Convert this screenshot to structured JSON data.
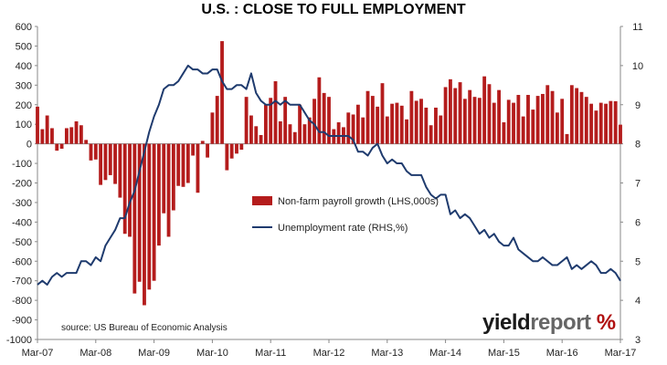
{
  "title": "U.S. : CLOSE TO FULL EMPLOYMENT",
  "source_note": "source: US Bureau of Economic Analysis",
  "brand": {
    "part1": "yield",
    "part2": "report",
    "symbol": "%"
  },
  "colors": {
    "bars": "#b41c1c",
    "line": "#1f3b6e",
    "grid": "#d9d9d9",
    "brand_accent": "#b01010"
  },
  "chart_data": {
    "type": "bar",
    "x_tick_labels": [
      "Mar-07",
      "Mar-08",
      "Mar-09",
      "Mar-10",
      "Mar-11",
      "Mar-12",
      "Mar-13",
      "Mar-14",
      "Mar-15",
      "Mar-16",
      "Mar-17"
    ],
    "left_axis": {
      "ticks": [
        -1000,
        -900,
        -800,
        -700,
        -600,
        -500,
        -400,
        -300,
        -200,
        -100,
        0,
        100,
        200,
        300,
        400,
        500,
        600
      ],
      "range": [
        -1000,
        600
      ]
    },
    "right_axis": {
      "ticks": [
        3,
        4,
        5,
        6,
        7,
        8,
        9,
        10,
        11
      ],
      "range": [
        3,
        11
      ]
    },
    "legend_placement": "center",
    "grid": false,
    "series": [
      {
        "name": "Non-farm payroll growth (LHS,000s)",
        "type": "bar",
        "axis": "left",
        "x": [
          "2007-03",
          "2007-04",
          "2007-05",
          "2007-06",
          "2007-07",
          "2007-08",
          "2007-09",
          "2007-10",
          "2007-11",
          "2007-12",
          "2008-01",
          "2008-02",
          "2008-03",
          "2008-04",
          "2008-05",
          "2008-06",
          "2008-07",
          "2008-08",
          "2008-09",
          "2008-10",
          "2008-11",
          "2008-12",
          "2009-01",
          "2009-02",
          "2009-03",
          "2009-04",
          "2009-05",
          "2009-06",
          "2009-07",
          "2009-08",
          "2009-09",
          "2009-10",
          "2009-11",
          "2009-12",
          "2010-01",
          "2010-02",
          "2010-03",
          "2010-04",
          "2010-05",
          "2010-06",
          "2010-07",
          "2010-08",
          "2010-09",
          "2010-10",
          "2010-11",
          "2010-12",
          "2011-01",
          "2011-02",
          "2011-03",
          "2011-04",
          "2011-05",
          "2011-06",
          "2011-07",
          "2011-08",
          "2011-09",
          "2011-10",
          "2011-11",
          "2011-12",
          "2012-01",
          "2012-02",
          "2012-03",
          "2012-04",
          "2012-05",
          "2012-06",
          "2012-07",
          "2012-08",
          "2012-09",
          "2012-10",
          "2012-11",
          "2012-12",
          "2013-01",
          "2013-02",
          "2013-03",
          "2013-04",
          "2013-05",
          "2013-06",
          "2013-07",
          "2013-08",
          "2013-09",
          "2013-10",
          "2013-11",
          "2013-12",
          "2014-01",
          "2014-02",
          "2014-03",
          "2014-04",
          "2014-05",
          "2014-06",
          "2014-07",
          "2014-08",
          "2014-09",
          "2014-10",
          "2014-11",
          "2014-12",
          "2015-01",
          "2015-02",
          "2015-03",
          "2015-04",
          "2015-05",
          "2015-06",
          "2015-07",
          "2015-08",
          "2015-09",
          "2015-10",
          "2015-11",
          "2015-12",
          "2016-01",
          "2016-02",
          "2016-03",
          "2016-04",
          "2016-05",
          "2016-06",
          "2016-07",
          "2016-08",
          "2016-09",
          "2016-10",
          "2016-11",
          "2016-12",
          "2017-01",
          "2017-02",
          "2017-03"
        ],
        "values": [
          190,
          75,
          145,
          80,
          -35,
          -25,
          80,
          85,
          115,
          95,
          20,
          -85,
          -80,
          -210,
          -185,
          -160,
          -205,
          -275,
          -460,
          -475,
          -765,
          -705,
          -825,
          -745,
          -700,
          -520,
          -355,
          -475,
          -340,
          -215,
          -220,
          -200,
          -60,
          -250,
          15,
          -70,
          160,
          245,
          525,
          -135,
          -75,
          -50,
          -30,
          240,
          145,
          90,
          45,
          200,
          235,
          320,
          115,
          240,
          100,
          60,
          200,
          100,
          135,
          230,
          340,
          260,
          240,
          75,
          110,
          85,
          160,
          150,
          200,
          135,
          270,
          245,
          190,
          310,
          140,
          205,
          210,
          195,
          125,
          270,
          220,
          230,
          185,
          95,
          185,
          145,
          290,
          330,
          285,
          315,
          230,
          275,
          240,
          235,
          345,
          305,
          210,
          275,
          110,
          225,
          210,
          250,
          140,
          250,
          175,
          245,
          255,
          300,
          270,
          160,
          230,
          50,
          300,
          285,
          265,
          240,
          205,
          170,
          210,
          205,
          219,
          218,
          98
        ],
        "unit": "thousands"
      },
      {
        "name": "Unemployment rate (RHS,%)",
        "type": "line",
        "axis": "right",
        "x": [
          "2007-03",
          "2007-04",
          "2007-05",
          "2007-06",
          "2007-07",
          "2007-08",
          "2007-09",
          "2007-10",
          "2007-11",
          "2007-12",
          "2008-01",
          "2008-02",
          "2008-03",
          "2008-04",
          "2008-05",
          "2008-06",
          "2008-07",
          "2008-08",
          "2008-09",
          "2008-10",
          "2008-11",
          "2008-12",
          "2009-01",
          "2009-02",
          "2009-03",
          "2009-04",
          "2009-05",
          "2009-06",
          "2009-07",
          "2009-08",
          "2009-09",
          "2009-10",
          "2009-11",
          "2009-12",
          "2010-01",
          "2010-02",
          "2010-03",
          "2010-04",
          "2010-05",
          "2010-06",
          "2010-07",
          "2010-08",
          "2010-09",
          "2010-10",
          "2010-11",
          "2010-12",
          "2011-01",
          "2011-02",
          "2011-03",
          "2011-04",
          "2011-05",
          "2011-06",
          "2011-07",
          "2011-08",
          "2011-09",
          "2011-10",
          "2011-11",
          "2011-12",
          "2012-01",
          "2012-02",
          "2012-03",
          "2012-04",
          "2012-05",
          "2012-06",
          "2012-07",
          "2012-08",
          "2012-09",
          "2012-10",
          "2012-11",
          "2012-12",
          "2013-01",
          "2013-02",
          "2013-03",
          "2013-04",
          "2013-05",
          "2013-06",
          "2013-07",
          "2013-08",
          "2013-09",
          "2013-10",
          "2013-11",
          "2013-12",
          "2014-01",
          "2014-02",
          "2014-03",
          "2014-04",
          "2014-05",
          "2014-06",
          "2014-07",
          "2014-08",
          "2014-09",
          "2014-10",
          "2014-11",
          "2014-12",
          "2015-01",
          "2015-02",
          "2015-03",
          "2015-04",
          "2015-05",
          "2015-06",
          "2015-07",
          "2015-08",
          "2015-09",
          "2015-10",
          "2015-11",
          "2015-12",
          "2016-01",
          "2016-02",
          "2016-03",
          "2016-04",
          "2016-05",
          "2016-06",
          "2016-07",
          "2016-08",
          "2016-09",
          "2016-10",
          "2016-11",
          "2016-12",
          "2017-01",
          "2017-02",
          "2017-03"
        ],
        "values": [
          4.4,
          4.5,
          4.4,
          4.6,
          4.7,
          4.6,
          4.7,
          4.7,
          4.7,
          5.0,
          5.0,
          4.9,
          5.1,
          5.0,
          5.4,
          5.6,
          5.8,
          6.1,
          6.1,
          6.5,
          6.8,
          7.3,
          7.8,
          8.3,
          8.7,
          9.0,
          9.4,
          9.5,
          9.5,
          9.6,
          9.8,
          10.0,
          9.9,
          9.9,
          9.8,
          9.8,
          9.9,
          9.9,
          9.6,
          9.4,
          9.4,
          9.5,
          9.5,
          9.4,
          9.8,
          9.3,
          9.1,
          9.0,
          9.0,
          9.1,
          9.0,
          9.1,
          9.0,
          9.0,
          9.0,
          8.8,
          8.6,
          8.5,
          8.3,
          8.3,
          8.2,
          8.2,
          8.2,
          8.2,
          8.2,
          8.1,
          7.8,
          7.8,
          7.7,
          7.9,
          8.0,
          7.7,
          7.5,
          7.6,
          7.5,
          7.5,
          7.3,
          7.2,
          7.2,
          7.2,
          6.9,
          6.7,
          6.6,
          6.7,
          6.7,
          6.2,
          6.3,
          6.1,
          6.2,
          6.1,
          5.9,
          5.7,
          5.8,
          5.6,
          5.7,
          5.5,
          5.4,
          5.4,
          5.6,
          5.3,
          5.2,
          5.1,
          5.0,
          5.0,
          5.1,
          5.0,
          4.9,
          4.9,
          5.0,
          5.1,
          4.8,
          4.9,
          4.8,
          4.9,
          5.0,
          4.9,
          4.7,
          4.7,
          4.8,
          4.7,
          4.5
        ],
        "unit": "%"
      }
    ]
  }
}
